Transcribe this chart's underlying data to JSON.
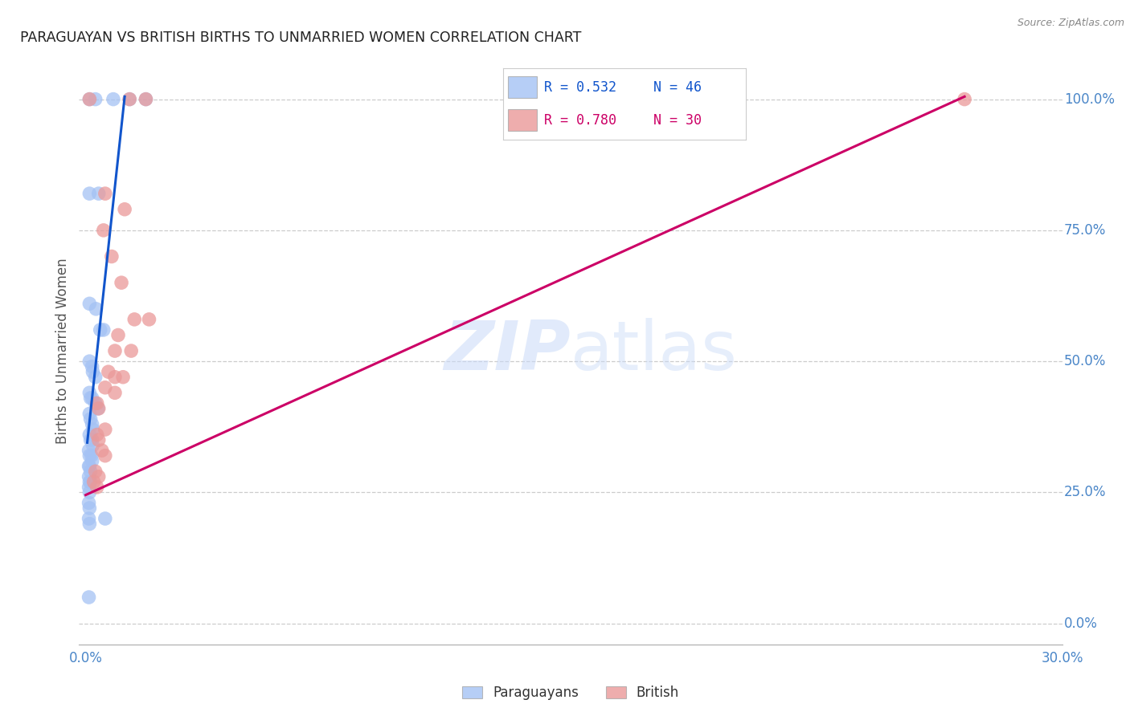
{
  "title": "PARAGUAYAN VS BRITISH BIRTHS TO UNMARRIED WOMEN CORRELATION CHART",
  "source": "Source: ZipAtlas.com",
  "ylabel": "Births to Unmarried Women",
  "ylabel_right_ticks": [
    "0.0%",
    "25.0%",
    "50.0%",
    "75.0%",
    "100.0%"
  ],
  "legend_blue_r": "R = 0.532",
  "legend_blue_n": "N = 46",
  "legend_pink_r": "R = 0.780",
  "legend_pink_n": "N = 30",
  "watermark": "ZIPatlas",
  "blue_color": "#a4c2f4",
  "pink_color": "#ea9999",
  "blue_fill": "#6d9eeb",
  "pink_fill": "#e06666",
  "blue_line_color": "#1155cc",
  "pink_line_color": "#cc0066",
  "paraguayan_points": [
    [
      0.0012,
      1.0
    ],
    [
      0.003,
      1.0
    ],
    [
      0.0085,
      1.0
    ],
    [
      0.0135,
      1.0
    ],
    [
      0.0185,
      1.0
    ],
    [
      0.0012,
      0.82
    ],
    [
      0.004,
      0.82
    ],
    [
      0.0012,
      0.61
    ],
    [
      0.0032,
      0.6
    ],
    [
      0.0045,
      0.56
    ],
    [
      0.0055,
      0.56
    ],
    [
      0.0012,
      0.5
    ],
    [
      0.002,
      0.49
    ],
    [
      0.0022,
      0.48
    ],
    [
      0.003,
      0.47
    ],
    [
      0.0012,
      0.44
    ],
    [
      0.0015,
      0.43
    ],
    [
      0.002,
      0.43
    ],
    [
      0.003,
      0.42
    ],
    [
      0.0038,
      0.41
    ],
    [
      0.0012,
      0.4
    ],
    [
      0.0015,
      0.39
    ],
    [
      0.002,
      0.38
    ],
    [
      0.0022,
      0.37
    ],
    [
      0.0012,
      0.36
    ],
    [
      0.0015,
      0.35
    ],
    [
      0.002,
      0.35
    ],
    [
      0.0022,
      0.34
    ],
    [
      0.001,
      0.33
    ],
    [
      0.0012,
      0.32
    ],
    [
      0.0018,
      0.32
    ],
    [
      0.002,
      0.31
    ],
    [
      0.001,
      0.3
    ],
    [
      0.0012,
      0.3
    ],
    [
      0.0015,
      0.29
    ],
    [
      0.001,
      0.28
    ],
    [
      0.0012,
      0.27
    ],
    [
      0.0015,
      0.27
    ],
    [
      0.001,
      0.26
    ],
    [
      0.0012,
      0.25
    ],
    [
      0.001,
      0.23
    ],
    [
      0.0012,
      0.22
    ],
    [
      0.001,
      0.2
    ],
    [
      0.0012,
      0.19
    ],
    [
      0.006,
      0.2
    ],
    [
      0.001,
      0.05
    ]
  ],
  "british_points": [
    [
      0.0135,
      1.0
    ],
    [
      0.0185,
      1.0
    ],
    [
      0.0012,
      1.0
    ],
    [
      0.27,
      1.0
    ],
    [
      0.006,
      0.82
    ],
    [
      0.012,
      0.79
    ],
    [
      0.0055,
      0.75
    ],
    [
      0.008,
      0.7
    ],
    [
      0.011,
      0.65
    ],
    [
      0.015,
      0.58
    ],
    [
      0.0195,
      0.58
    ],
    [
      0.01,
      0.55
    ],
    [
      0.009,
      0.52
    ],
    [
      0.014,
      0.52
    ],
    [
      0.007,
      0.48
    ],
    [
      0.009,
      0.47
    ],
    [
      0.0115,
      0.47
    ],
    [
      0.006,
      0.45
    ],
    [
      0.009,
      0.44
    ],
    [
      0.0035,
      0.42
    ],
    [
      0.004,
      0.41
    ],
    [
      0.006,
      0.37
    ],
    [
      0.0035,
      0.36
    ],
    [
      0.004,
      0.35
    ],
    [
      0.005,
      0.33
    ],
    [
      0.006,
      0.32
    ],
    [
      0.003,
      0.29
    ],
    [
      0.004,
      0.28
    ],
    [
      0.0025,
      0.27
    ],
    [
      0.0035,
      0.26
    ]
  ],
  "blue_line_x": [
    0.0005,
    0.012
  ],
  "blue_line_y": [
    0.345,
    1.005
  ],
  "pink_line_x": [
    0.0,
    0.27
  ],
  "pink_line_y": [
    0.245,
    1.005
  ],
  "xmin": 0.0,
  "xmax": 0.3,
  "ymin": 0.0,
  "ymax": 1.08
}
